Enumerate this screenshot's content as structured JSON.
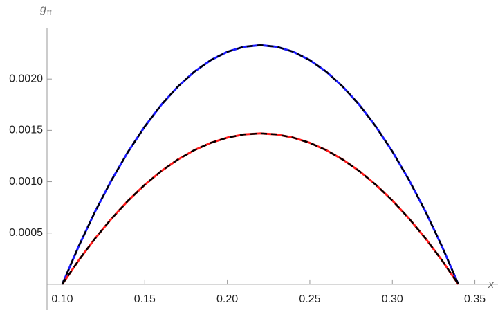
{
  "chart_data": {
    "type": "line",
    "ylabel": "g",
    "ylabel_sub": "tt",
    "xlabel": "x",
    "x": [
      0.1,
      0.11,
      0.12,
      0.13,
      0.14,
      0.15,
      0.16,
      0.17,
      0.18,
      0.19,
      0.2,
      0.21,
      0.22,
      0.23,
      0.24,
      0.25,
      0.26,
      0.27,
      0.28,
      0.29,
      0.3,
      0.31,
      0.32,
      0.33,
      0.34
    ],
    "series": [
      {
        "color": "#1a1aff",
        "dash": false,
        "values": [
          0,
          0.000372,
          0.000712,
          0.001019,
          0.001294,
          0.001537,
          0.001748,
          0.001925,
          0.002071,
          0.002184,
          0.002265,
          0.002314,
          0.00233,
          0.002314,
          0.002265,
          0.002184,
          0.002071,
          0.001925,
          0.001748,
          0.001537,
          0.001294,
          0.001019,
          0.000712,
          0.000372,
          0
        ]
      },
      {
        "color": "#ff1a1a",
        "dash": false,
        "values": [
          0,
          0.000235,
          0.000449,
          0.000643,
          0.000817,
          0.00097,
          0.001103,
          0.001215,
          0.001307,
          0.001378,
          0.001429,
          0.00146,
          0.00147,
          0.00146,
          0.001429,
          0.001378,
          0.001307,
          0.001215,
          0.001103,
          0.00097,
          0.000817,
          0.000643,
          0.000449,
          0.000235,
          0
        ]
      },
      {
        "color": "#000000",
        "dash": true,
        "values": [
          0,
          0.000372,
          0.000712,
          0.001019,
          0.001294,
          0.001537,
          0.001748,
          0.001925,
          0.002071,
          0.002184,
          0.002265,
          0.002314,
          0.00233,
          0.002314,
          0.002265,
          0.002184,
          0.002071,
          0.001925,
          0.001748,
          0.001537,
          0.001294,
          0.001019,
          0.000712,
          0.000372,
          0
        ]
      },
      {
        "color": "#000000",
        "dash": true,
        "values": [
          0,
          0.000235,
          0.000449,
          0.000643,
          0.000817,
          0.00097,
          0.001103,
          0.001215,
          0.001307,
          0.001378,
          0.001429,
          0.00146,
          0.00147,
          0.00146,
          0.001429,
          0.001378,
          0.001307,
          0.001215,
          0.001103,
          0.00097,
          0.000817,
          0.000643,
          0.000449,
          0.000235,
          0
        ]
      }
    ],
    "xlim": [
      0.0908,
      0.364
    ],
    "ylim": [
      -0.00025,
      0.0025
    ],
    "xticks": [
      {
        "value": 0.1,
        "label": "0.10"
      },
      0.15,
      {
        "value": 0.2,
        "label": "0.20"
      },
      0.25,
      {
        "value": 0.3,
        "label": "0.30"
      },
      0.35
    ],
    "yticks": [
      0.0005,
      {
        "value": 0.001,
        "label": "0.0010"
      },
      0.0015,
      {
        "value": 0.002,
        "label": "0.0020"
      }
    ]
  }
}
